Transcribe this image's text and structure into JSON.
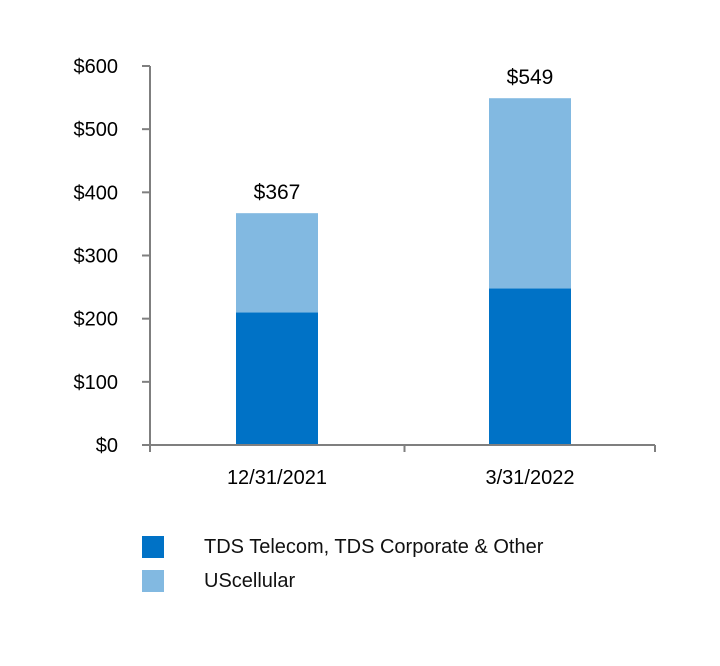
{
  "chart_data": {
    "type": "bar",
    "stacked": true,
    "categories": [
      "12/31/2021",
      "3/31/2022"
    ],
    "series": [
      {
        "name": "TDS Telecom, TDS Corporate & Other",
        "values": [
          210,
          248
        ],
        "color": "#0072C6"
      },
      {
        "name": "UScellular",
        "values": [
          157,
          301
        ],
        "color": "#82B9E1"
      }
    ],
    "totals": [
      367,
      549
    ],
    "total_labels": [
      "$367",
      "$549"
    ],
    "ylim": [
      0,
      600
    ],
    "yticks": [
      0,
      100,
      200,
      300,
      400,
      500,
      600
    ],
    "ytick_labels": [
      "$0",
      "$100",
      "$200",
      "$300",
      "$400",
      "$500",
      "$600"
    ],
    "title": "",
    "xlabel": "",
    "ylabel": "",
    "legend_position": "bottom-left",
    "axis_color": "#7f7f7f"
  }
}
